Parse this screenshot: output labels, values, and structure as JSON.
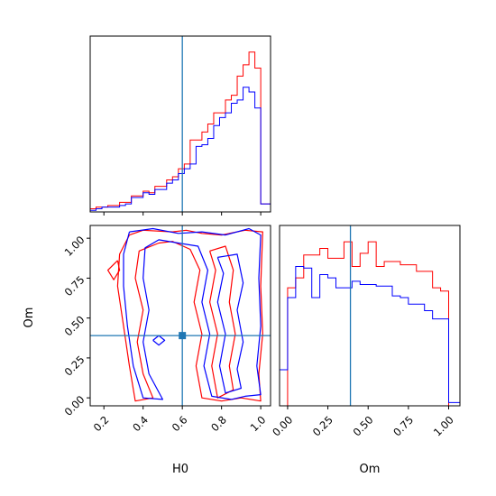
{
  "colors": {
    "red": "#ff0000",
    "blue": "#0000ff",
    "truth": "#1f77b4",
    "frame": "#000000"
  },
  "chart_data": {
    "type": "corner",
    "truth": {
      "H0": 0.6,
      "Om": 0.39
    },
    "panels": [
      {
        "id": "hist-H0",
        "type": "histogram",
        "xlim": [
          0.13,
          1.05
        ],
        "ylim": [
          0,
          1.1
        ],
        "bin_edges": [
          0.13,
          0.16,
          0.19,
          0.22,
          0.25,
          0.28,
          0.31,
          0.34,
          0.37,
          0.4,
          0.43,
          0.46,
          0.49,
          0.52,
          0.55,
          0.58,
          0.61,
          0.64,
          0.67,
          0.7,
          0.73,
          0.76,
          0.79,
          0.82,
          0.85,
          0.88,
          0.91,
          0.94,
          0.97,
          1.0,
          1.05
        ],
        "series": [
          {
            "color": "red",
            "values": [
              0.02,
              0.03,
              0.03,
              0.04,
              0.04,
              0.06,
              0.06,
              0.1,
              0.1,
              0.13,
              0.12,
              0.16,
              0.16,
              0.2,
              0.22,
              0.27,
              0.3,
              0.45,
              0.45,
              0.5,
              0.55,
              0.62,
              0.62,
              0.7,
              0.73,
              0.85,
              0.92,
              1.0,
              0.9,
              0.05
            ]
          },
          {
            "color": "blue",
            "values": [
              0.01,
              0.02,
              0.03,
              0.03,
              0.03,
              0.04,
              0.05,
              0.09,
              0.09,
              0.12,
              0.11,
              0.14,
              0.14,
              0.18,
              0.2,
              0.24,
              0.27,
              0.3,
              0.41,
              0.42,
              0.46,
              0.54,
              0.59,
              0.62,
              0.68,
              0.7,
              0.78,
              0.75,
              0.65,
              0.05
            ]
          }
        ]
      },
      {
        "id": "contour-H0-Om",
        "type": "contour",
        "xlim": [
          0.13,
          1.05
        ],
        "ylim": [
          -0.05,
          1.08
        ],
        "xlabel": "H0",
        "ylabel": "Om",
        "xticks": [
          "0.2",
          "0.4",
          "0.6",
          "0.8",
          "1.0"
        ],
        "xtick_values": [
          0.2,
          0.4,
          0.6,
          0.8,
          1.0
        ],
        "yticks": [
          "0.00",
          "0.25",
          "0.50",
          "0.75",
          "1.00"
        ],
        "ytick_values": [
          0.0,
          0.25,
          0.5,
          0.75,
          1.0
        ],
        "series": [
          {
            "color": "red",
            "contours": [
              [
                [
                  0.33,
                  1.02
                ],
                [
                  0.4,
                  1.05
                ],
                [
                  0.55,
                  1.04
                ],
                [
                  0.62,
                  1.05
                ],
                [
                  0.7,
                  1.03
                ],
                [
                  0.8,
                  1.02
                ],
                [
                  0.92,
                  1.05
                ],
                [
                  1.01,
                  1.04
                ],
                [
                  1.0,
                  0.7
                ],
                [
                  1.01,
                  0.4
                ],
                [
                  0.99,
                  0.15
                ],
                [
                  1.0,
                  -0.02
                ],
                [
                  0.9,
                  0.0
                ],
                [
                  0.8,
                  -0.02
                ],
                [
                  0.7,
                  0.0
                ],
                [
                  0.67,
                  0.2
                ],
                [
                  0.7,
                  0.4
                ],
                [
                  0.66,
                  0.6
                ],
                [
                  0.69,
                  0.8
                ],
                [
                  0.64,
                  0.93
                ],
                [
                  0.55,
                  0.98
                ],
                [
                  0.48,
                  0.97
                ],
                [
                  0.38,
                  0.92
                ],
                [
                  0.36,
                  0.75
                ],
                [
                  0.4,
                  0.55
                ],
                [
                  0.37,
                  0.35
                ],
                [
                  0.4,
                  0.15
                ],
                [
                  0.45,
                  0.0
                ],
                [
                  0.36,
                  -0.02
                ],
                [
                  0.33,
                  0.2
                ],
                [
                  0.3,
                  0.45
                ],
                [
                  0.27,
                  0.7
                ],
                [
                  0.28,
                  0.9
                ],
                [
                  0.33,
                  1.02
                ]
              ],
              [
                [
                  0.74,
                  0.92
                ],
                [
                  0.82,
                  0.95
                ],
                [
                  0.86,
                  0.8
                ],
                [
                  0.84,
                  0.6
                ],
                [
                  0.87,
                  0.4
                ],
                [
                  0.84,
                  0.2
                ],
                [
                  0.86,
                  0.05
                ],
                [
                  0.78,
                  0.0
                ],
                [
                  0.75,
                  0.2
                ],
                [
                  0.78,
                  0.4
                ],
                [
                  0.74,
                  0.6
                ],
                [
                  0.77,
                  0.8
                ],
                [
                  0.74,
                  0.92
                ]
              ],
              [
                [
                  0.27,
                  0.86
                ],
                [
                  0.22,
                  0.8
                ],
                [
                  0.25,
                  0.74
                ],
                [
                  0.28,
                  0.8
                ],
                [
                  0.27,
                  0.86
                ]
              ]
            ]
          },
          {
            "color": "blue",
            "contours": [
              [
                [
                  0.33,
                  1.04
                ],
                [
                  0.45,
                  1.06
                ],
                [
                  0.58,
                  1.03
                ],
                [
                  0.7,
                  1.04
                ],
                [
                  0.82,
                  1.02
                ],
                [
                  0.94,
                  1.06
                ],
                [
                  1.0,
                  1.02
                ],
                [
                  0.99,
                  0.75
                ],
                [
                  1.0,
                  0.45
                ],
                [
                  0.98,
                  0.2
                ],
                [
                  1.0,
                  0.02
                ],
                [
                  0.92,
                  0.01
                ],
                [
                  0.85,
                  -0.01
                ],
                [
                  0.75,
                  0.01
                ],
                [
                  0.71,
                  0.2
                ],
                [
                  0.74,
                  0.4
                ],
                [
                  0.7,
                  0.6
                ],
                [
                  0.73,
                  0.8
                ],
                [
                  0.68,
                  0.95
                ],
                [
                  0.58,
                  0.97
                ],
                [
                  0.48,
                  0.99
                ],
                [
                  0.41,
                  0.94
                ],
                [
                  0.4,
                  0.75
                ],
                [
                  0.43,
                  0.55
                ],
                [
                  0.4,
                  0.35
                ],
                [
                  0.43,
                  0.15
                ],
                [
                  0.5,
                  -0.01
                ],
                [
                  0.4,
                  0.0
                ],
                [
                  0.35,
                  0.2
                ],
                [
                  0.32,
                  0.45
                ],
                [
                  0.3,
                  0.7
                ],
                [
                  0.3,
                  0.9
                ],
                [
                  0.33,
                  1.04
                ]
              ],
              [
                [
                  0.78,
                  0.88
                ],
                [
                  0.88,
                  0.9
                ],
                [
                  0.91,
                  0.72
                ],
                [
                  0.88,
                  0.55
                ],
                [
                  0.91,
                  0.35
                ],
                [
                  0.88,
                  0.18
                ],
                [
                  0.9,
                  0.06
                ],
                [
                  0.82,
                  0.03
                ],
                [
                  0.79,
                  0.2
                ],
                [
                  0.82,
                  0.4
                ],
                [
                  0.78,
                  0.6
                ],
                [
                  0.81,
                  0.78
                ],
                [
                  0.78,
                  0.88
                ]
              ],
              [
                [
                  0.45,
                  0.36
                ],
                [
                  0.48,
                  0.39
                ],
                [
                  0.51,
                  0.36
                ],
                [
                  0.48,
                  0.33
                ],
                [
                  0.45,
                  0.36
                ]
              ]
            ]
          }
        ]
      },
      {
        "id": "hist-Om",
        "type": "histogram",
        "xlim": [
          -0.05,
          1.07
        ],
        "ylim": [
          0,
          1.1
        ],
        "xlabel": "Om",
        "xticks": [
          "0.00",
          "0.25",
          "0.50",
          "0.75",
          "1.00"
        ],
        "xtick_values": [
          0.0,
          0.25,
          0.5,
          0.75,
          1.0
        ],
        "bin_edges": [
          -0.05,
          0.0,
          0.05,
          0.1,
          0.15,
          0.2,
          0.25,
          0.3,
          0.35,
          0.4,
          0.45,
          0.5,
          0.55,
          0.6,
          0.65,
          0.7,
          0.75,
          0.8,
          0.85,
          0.9,
          0.95,
          1.0,
          1.07
        ],
        "series": [
          {
            "color": "red",
            "values": [
              0.0,
              0.72,
              0.78,
              0.92,
              0.92,
              0.96,
              0.9,
              0.9,
              1.0,
              0.85,
              0.93,
              1.0,
              0.85,
              0.88,
              0.88,
              0.86,
              0.86,
              0.82,
              0.82,
              0.72,
              0.7,
              0.0
            ]
          },
          {
            "color": "blue",
            "values": [
              0.22,
              0.66,
              0.85,
              0.84,
              0.66,
              0.8,
              0.78,
              0.72,
              0.72,
              0.76,
              0.74,
              0.74,
              0.73,
              0.73,
              0.67,
              0.66,
              0.62,
              0.62,
              0.58,
              0.53,
              0.53,
              0.02
            ]
          }
        ]
      }
    ]
  }
}
